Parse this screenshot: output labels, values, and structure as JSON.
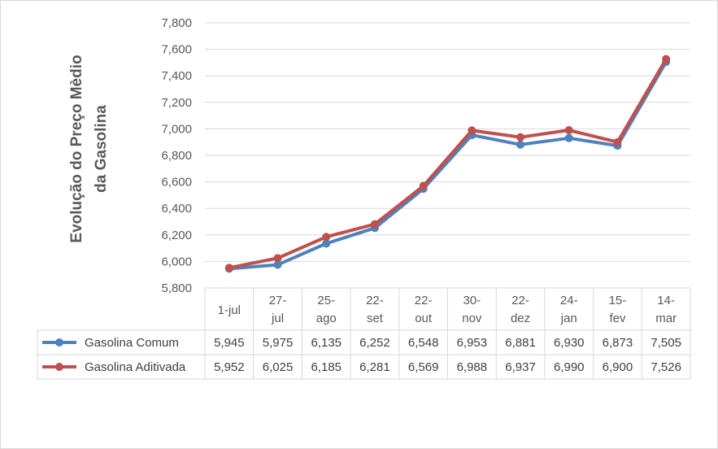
{
  "chart_data": {
    "type": "line",
    "ylabel_lines": [
      "Evolução do Preço Mèdio",
      "da Gasolina"
    ],
    "categories": [
      [
        "1-jul"
      ],
      [
        "27-",
        "jul"
      ],
      [
        "25-",
        "ago"
      ],
      [
        "22-",
        "set"
      ],
      [
        "22-",
        "out"
      ],
      [
        "30-",
        "nov"
      ],
      [
        "22-",
        "dez"
      ],
      [
        "24-",
        "jan"
      ],
      [
        "15-",
        "fev"
      ],
      [
        "14-",
        "mar"
      ]
    ],
    "ylim": [
      5.8,
      7.8
    ],
    "yticks": [
      "5,800",
      "6,000",
      "6,200",
      "6,400",
      "6,600",
      "6,800",
      "7,000",
      "7,200",
      "7,400",
      "7,600",
      "7,800"
    ],
    "grid": true,
    "legend": "data-table",
    "series": [
      {
        "name": "Gasolina Comum",
        "color": "#4f81bd",
        "values": [
          5.945,
          5.975,
          6.135,
          6.252,
          6.548,
          6.953,
          6.881,
          6.93,
          6.873,
          7.505
        ],
        "labels": [
          "5,945",
          "5,975",
          "6,135",
          "6,252",
          "6,548",
          "6,953",
          "6,881",
          "6,930",
          "6,873",
          "7,505"
        ]
      },
      {
        "name": "Gasolina Aditivada",
        "color": "#c0504d",
        "values": [
          5.952,
          6.025,
          6.185,
          6.281,
          6.569,
          6.988,
          6.937,
          6.99,
          6.9,
          7.526
        ],
        "labels": [
          "5,952",
          "6,025",
          "6,185",
          "6,281",
          "6,569",
          "6,988",
          "6,937",
          "6,990",
          "6,900",
          "7,526"
        ]
      }
    ]
  }
}
